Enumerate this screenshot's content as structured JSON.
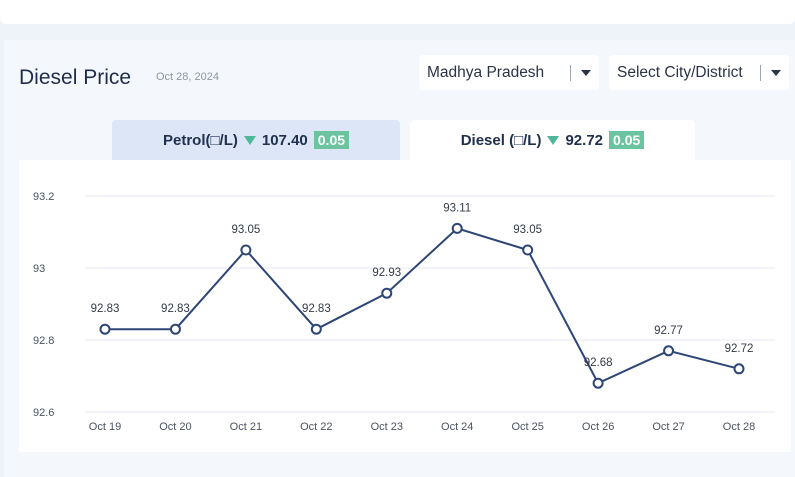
{
  "header": {
    "title": "Diesel Price",
    "date": "Oct 28, 2024"
  },
  "selectors": {
    "state": "Madhya Pradesh",
    "city": "Select City/District"
  },
  "tabs": [
    {
      "label": "Petrol(□/L)",
      "price": "107.40",
      "change": "0.05",
      "direction": "down",
      "active": false
    },
    {
      "label": "Diesel (□/L)",
      "price": "92.72",
      "change": "0.05",
      "direction": "down",
      "active": true
    }
  ],
  "colors": {
    "line": "#2e4677",
    "change_badge": "#6bc49f",
    "down_arrow": "#4fb89a",
    "inactive_tab": "#dce6f6"
  },
  "chart_data": {
    "type": "line",
    "categories": [
      "Oct 19",
      "Oct 20",
      "Oct 21",
      "Oct 22",
      "Oct 23",
      "Oct 24",
      "Oct 25",
      "Oct 26",
      "Oct 27",
      "Oct 28"
    ],
    "series": [
      {
        "values": [
          92.83,
          92.83,
          93.05,
          92.83,
          92.93,
          93.11,
          93.05,
          92.68,
          92.77,
          92.72
        ]
      }
    ],
    "data_labels": [
      "92.83",
      "92.83",
      "93.05",
      "92.83",
      "92.93",
      "93.11",
      "93.05",
      "92.68",
      "92.77",
      "92.72"
    ],
    "y_ticks": [
      92.6,
      92.8,
      93,
      93.2
    ],
    "y_tick_labels": [
      "92.6",
      "92.8",
      "93",
      "93.2"
    ],
    "ylim": [
      92.6,
      93.2
    ],
    "grid": true,
    "title": "",
    "xlabel": "",
    "ylabel": ""
  }
}
